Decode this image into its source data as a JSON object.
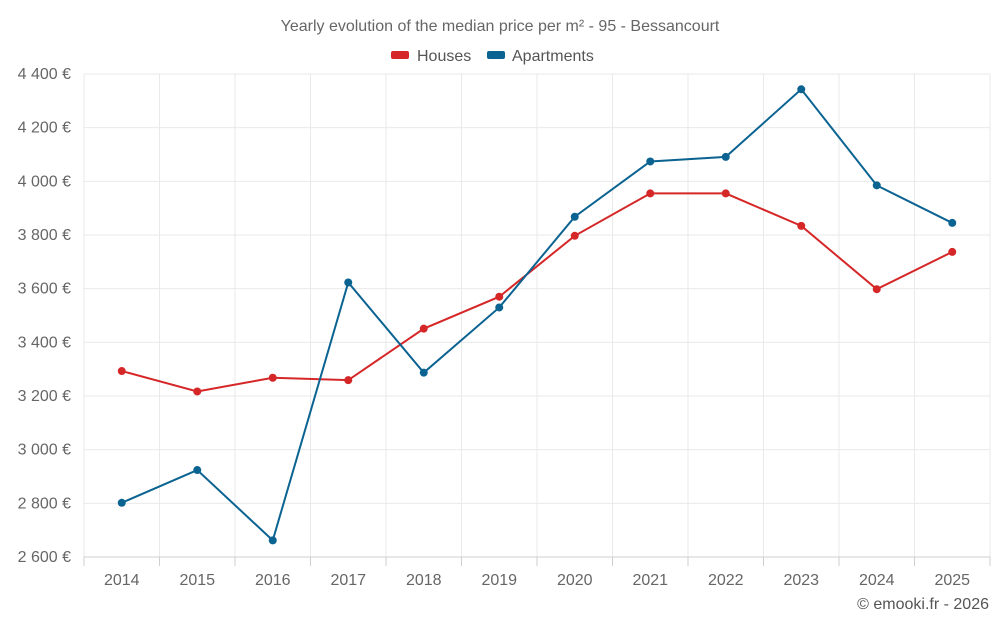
{
  "chart_data": {
    "type": "line",
    "title": "Yearly evolution of the median price per m² - 95 - Bessancourt",
    "categories": [
      "2014",
      "2015",
      "2016",
      "2017",
      "2018",
      "2019",
      "2020",
      "2021",
      "2022",
      "2023",
      "2024",
      "2025"
    ],
    "series": [
      {
        "name": "Houses",
        "color": "#d62728",
        "values": [
          3293,
          3217,
          3268,
          3259,
          3451,
          3570,
          3797,
          3955,
          3955,
          3834,
          3598,
          3737
        ]
      },
      {
        "name": "Apartments",
        "color": "#0b6391",
        "values": [
          2802,
          2924,
          2662,
          3623,
          3287,
          3530,
          3868,
          4074,
          4091,
          4343,
          3985,
          3845
        ]
      }
    ],
    "ylim": [
      2600,
      4400
    ],
    "y_ticks": [
      2600,
      2800,
      3000,
      3200,
      3400,
      3600,
      3800,
      4000,
      4200,
      4400
    ],
    "y_tick_labels": [
      "2 600 €",
      "2 800 €",
      "3 000 €",
      "3 200 €",
      "3 400 €",
      "3 600 €",
      "3 800 €",
      "4 000 €",
      "4 200 €",
      "4 400 €"
    ],
    "xlabel": "",
    "ylabel": "",
    "grid": true,
    "legend_position": "top-center"
  },
  "credit": "© emooki.fr - 2026"
}
